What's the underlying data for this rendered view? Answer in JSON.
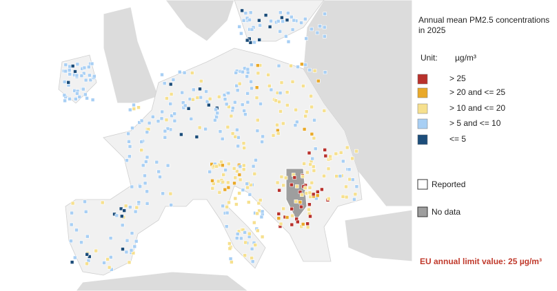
{
  "header": {
    "title_lines": [
      "Annual mean PM2.5 concentrations",
      "in 2025"
    ]
  },
  "legend": {
    "unit_label": "Unit:",
    "unit": "µg/m³",
    "items": [
      {
        "label": "> 25",
        "color": "#b8312c"
      },
      {
        "label": "> 20 and <= 25",
        "color": "#e9a92a"
      },
      {
        "label": "> 10 and <= 20",
        "color": "#f6e08e"
      },
      {
        "label": "> 5 and <= 10",
        "color": "#a8cff4"
      },
      {
        "label": "<= 5",
        "color": "#1c4d7a"
      }
    ],
    "reported": "Reported",
    "no_data": "No data"
  },
  "note": "EU annual limit value: 25 µg/m³"
}
